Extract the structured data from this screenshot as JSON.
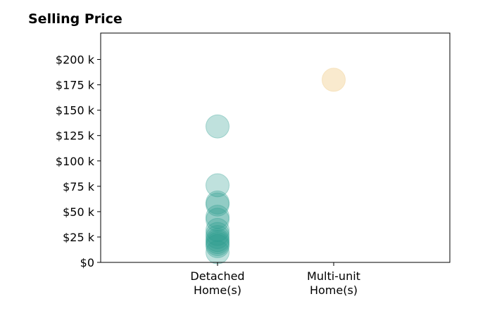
{
  "chart_data": {
    "type": "scatter",
    "title": "Selling Price",
    "xlabel": "",
    "ylabel": "",
    "categories": [
      [
        "Detached",
        "Home(s)"
      ],
      [
        "Multi-unit",
        "Home(s)"
      ]
    ],
    "y_ticks": [
      {
        "value": 0,
        "label": "$0"
      },
      {
        "value": 25000,
        "label": "$25 k"
      },
      {
        "value": 50000,
        "label": "$50 k"
      },
      {
        "value": 75000,
        "label": "$75 k"
      },
      {
        "value": 100000,
        "label": "$100 k"
      },
      {
        "value": 125000,
        "label": "$125 k"
      },
      {
        "value": 150000,
        "label": "$150 k"
      },
      {
        "value": 175000,
        "label": "$175 k"
      },
      {
        "value": 200000,
        "label": "$200 k"
      }
    ],
    "ylim": [
      0,
      226000
    ],
    "grid": false,
    "legend": "none",
    "series": [
      {
        "category_index": 0,
        "color": "#2a9d8f",
        "values": [
          134000,
          76000,
          59000,
          57000,
          45000,
          42000,
          32000,
          28000,
          25000,
          22000,
          20000,
          18000,
          16000,
          10000
        ]
      },
      {
        "category_index": 1,
        "color": "#f4d9a6",
        "values": [
          180000
        ]
      }
    ]
  }
}
